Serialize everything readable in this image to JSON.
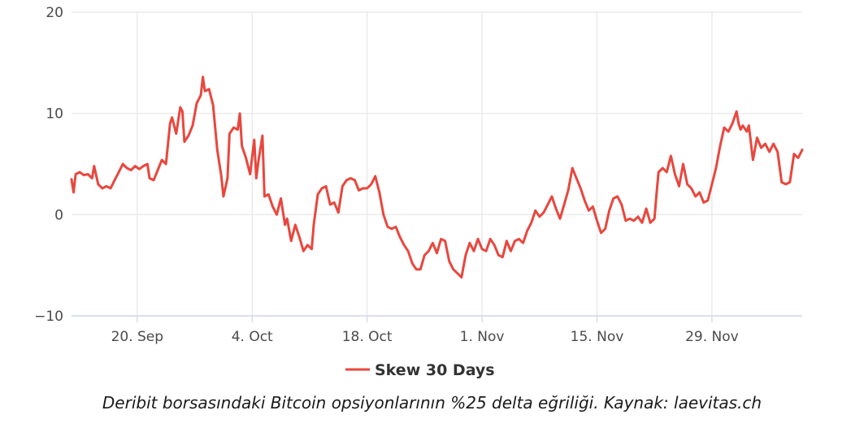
{
  "caption": "Deribit borsasındaki Bitcoin opsiyonlarının %25 delta eğriliği. Kaynak: laevitas.ch",
  "colors": {
    "series": "#e8473e",
    "grid": "#e6e6e6",
    "axis": "#ccd6eb"
  },
  "chart_data": {
    "type": "line",
    "title": "",
    "xlabel": "",
    "ylabel": "",
    "ylim": [
      -10,
      20
    ],
    "xlim": [
      "2021-09-12",
      "2021-12-10"
    ],
    "grid": true,
    "legend_position": "bottom-center",
    "y_ticks": [
      {
        "value": -10,
        "label": "−10"
      },
      {
        "value": 0,
        "label": "0"
      },
      {
        "value": 10,
        "label": "10"
      },
      {
        "value": 20,
        "label": "20"
      }
    ],
    "x_ticks": [
      {
        "value": "2021-09-20",
        "label": "20. Sep"
      },
      {
        "value": "2021-10-04",
        "label": "4. Oct"
      },
      {
        "value": "2021-10-18",
        "label": "18. Oct"
      },
      {
        "value": "2021-11-01",
        "label": "1. Nov"
      },
      {
        "value": "2021-11-15",
        "label": "15. Nov"
      },
      {
        "value": "2021-11-29",
        "label": "29. Nov"
      }
    ],
    "series": [
      {
        "name": "Skew 30 Days",
        "points": [
          [
            "2021-09-12T00:00",
            3.5
          ],
          [
            "2021-09-12T06:00",
            2.2
          ],
          [
            "2021-09-12T12:00",
            4.0
          ],
          [
            "2021-09-13T00:00",
            4.2
          ],
          [
            "2021-09-13T12:00",
            3.9
          ],
          [
            "2021-09-14T00:00",
            4.0
          ],
          [
            "2021-09-14T12:00",
            3.6
          ],
          [
            "2021-09-14T18:00",
            4.8
          ],
          [
            "2021-09-15T06:00",
            3.0
          ],
          [
            "2021-09-15T18:00",
            2.6
          ],
          [
            "2021-09-16T06:00",
            2.8
          ],
          [
            "2021-09-16T18:00",
            2.6
          ],
          [
            "2021-09-17T06:00",
            3.4
          ],
          [
            "2021-09-17T18:00",
            4.2
          ],
          [
            "2021-09-18T06:00",
            5.0
          ],
          [
            "2021-09-18T18:00",
            4.6
          ],
          [
            "2021-09-19T06:00",
            4.4
          ],
          [
            "2021-09-19T18:00",
            4.8
          ],
          [
            "2021-09-20T06:00",
            4.5
          ],
          [
            "2021-09-20T18:00",
            4.8
          ],
          [
            "2021-09-21T06:00",
            5.0
          ],
          [
            "2021-09-21T12:00",
            3.6
          ],
          [
            "2021-09-22T00:00",
            3.4
          ],
          [
            "2021-09-22T12:00",
            4.4
          ],
          [
            "2021-09-23T00:00",
            5.4
          ],
          [
            "2021-09-23T12:00",
            5.0
          ],
          [
            "2021-09-24T00:00",
            9.0
          ],
          [
            "2021-09-24T06:00",
            9.6
          ],
          [
            "2021-09-24T18:00",
            8.0
          ],
          [
            "2021-09-25T06:00",
            10.6
          ],
          [
            "2021-09-25T12:00",
            10.2
          ],
          [
            "2021-09-25T18:00",
            7.2
          ],
          [
            "2021-09-26T06:00",
            7.8
          ],
          [
            "2021-09-26T18:00",
            8.8
          ],
          [
            "2021-09-27T06:00",
            11.0
          ],
          [
            "2021-09-27T18:00",
            11.8
          ],
          [
            "2021-09-28T00:00",
            13.6
          ],
          [
            "2021-09-28T06:00",
            12.2
          ],
          [
            "2021-09-28T18:00",
            12.4
          ],
          [
            "2021-09-29T06:00",
            10.8
          ],
          [
            "2021-09-29T18:00",
            6.4
          ],
          [
            "2021-09-30T06:00",
            3.8
          ],
          [
            "2021-09-30T12:00",
            1.8
          ],
          [
            "2021-10-01T00:00",
            3.6
          ],
          [
            "2021-10-01T06:00",
            8.0
          ],
          [
            "2021-10-01T18:00",
            8.6
          ],
          [
            "2021-10-02T06:00",
            8.4
          ],
          [
            "2021-10-02T12:00",
            10.0
          ],
          [
            "2021-10-02T18:00",
            6.8
          ],
          [
            "2021-10-03T06:00",
            5.6
          ],
          [
            "2021-10-03T18:00",
            4.0
          ],
          [
            "2021-10-04T06:00",
            7.4
          ],
          [
            "2021-10-04T12:00",
            3.6
          ],
          [
            "2021-10-04T18:00",
            5.2
          ],
          [
            "2021-10-05T06:00",
            7.8
          ],
          [
            "2021-10-05T12:00",
            1.8
          ],
          [
            "2021-10-06T00:00",
            2.0
          ],
          [
            "2021-10-06T12:00",
            0.8
          ],
          [
            "2021-10-07T00:00",
            0.0
          ],
          [
            "2021-10-07T12:00",
            1.6
          ],
          [
            "2021-10-08T00:00",
            -1.0
          ],
          [
            "2021-10-08T06:00",
            -0.4
          ],
          [
            "2021-10-08T18:00",
            -2.6
          ],
          [
            "2021-10-09T06:00",
            -1.0
          ],
          [
            "2021-10-09T18:00",
            -2.2
          ],
          [
            "2021-10-10T06:00",
            -3.6
          ],
          [
            "2021-10-10T18:00",
            -3.0
          ],
          [
            "2021-10-11T06:00",
            -3.4
          ],
          [
            "2021-10-11T12:00",
            -1.0
          ],
          [
            "2021-10-12T00:00",
            2.0
          ],
          [
            "2021-10-12T12:00",
            2.6
          ],
          [
            "2021-10-13T00:00",
            2.8
          ],
          [
            "2021-10-13T12:00",
            1.0
          ],
          [
            "2021-10-14T00:00",
            1.2
          ],
          [
            "2021-10-14T12:00",
            0.2
          ],
          [
            "2021-10-15T00:00",
            2.8
          ],
          [
            "2021-10-15T12:00",
            3.4
          ],
          [
            "2021-10-16T00:00",
            3.6
          ],
          [
            "2021-10-16T12:00",
            3.4
          ],
          [
            "2021-10-17T00:00",
            2.4
          ],
          [
            "2021-10-17T12:00",
            2.6
          ],
          [
            "2021-10-18T00:00",
            2.6
          ],
          [
            "2021-10-18T12:00",
            3.0
          ],
          [
            "2021-10-19T00:00",
            3.8
          ],
          [
            "2021-10-19T12:00",
            2.2
          ],
          [
            "2021-10-20T00:00",
            0.0
          ],
          [
            "2021-10-20T12:00",
            -1.2
          ],
          [
            "2021-10-21T00:00",
            -1.4
          ],
          [
            "2021-10-21T12:00",
            -1.2
          ],
          [
            "2021-10-22T00:00",
            -2.2
          ],
          [
            "2021-10-22T12:00",
            -3.0
          ],
          [
            "2021-10-23T00:00",
            -3.6
          ],
          [
            "2021-10-23T12:00",
            -4.8
          ],
          [
            "2021-10-24T00:00",
            -5.4
          ],
          [
            "2021-10-24T12:00",
            -5.4
          ],
          [
            "2021-10-25T00:00",
            -4.0
          ],
          [
            "2021-10-25T12:00",
            -3.6
          ],
          [
            "2021-10-26T00:00",
            -2.8
          ],
          [
            "2021-10-26T12:00",
            -3.8
          ],
          [
            "2021-10-27T00:00",
            -2.4
          ],
          [
            "2021-10-27T12:00",
            -2.6
          ],
          [
            "2021-10-28T00:00",
            -4.6
          ],
          [
            "2021-10-28T12:00",
            -5.4
          ],
          [
            "2021-10-29T00:00",
            -5.8
          ],
          [
            "2021-10-29T12:00",
            -6.2
          ],
          [
            "2021-10-30T00:00",
            -4.0
          ],
          [
            "2021-10-30T06:00",
            -3.4
          ],
          [
            "2021-10-30T12:00",
            -2.8
          ],
          [
            "2021-10-31T00:00",
            -3.6
          ],
          [
            "2021-10-31T12:00",
            -2.4
          ],
          [
            "2021-11-01T00:00",
            -3.4
          ],
          [
            "2021-11-01T12:00",
            -3.6
          ],
          [
            "2021-11-02T00:00",
            -2.4
          ],
          [
            "2021-11-02T12:00",
            -3.0
          ],
          [
            "2021-11-03T00:00",
            -4.0
          ],
          [
            "2021-11-03T12:00",
            -4.2
          ],
          [
            "2021-11-04T00:00",
            -2.6
          ],
          [
            "2021-11-04T12:00",
            -3.6
          ],
          [
            "2021-11-05T00:00",
            -2.6
          ],
          [
            "2021-11-05T12:00",
            -2.4
          ],
          [
            "2021-11-06T00:00",
            -2.8
          ],
          [
            "2021-11-06T12:00",
            -1.6
          ],
          [
            "2021-11-07T00:00",
            -0.8
          ],
          [
            "2021-11-07T12:00",
            0.4
          ],
          [
            "2021-11-08T00:00",
            -0.2
          ],
          [
            "2021-11-08T12:00",
            0.2
          ],
          [
            "2021-11-09T00:00",
            1.0
          ],
          [
            "2021-11-09T12:00",
            1.8
          ],
          [
            "2021-11-10T00:00",
            0.6
          ],
          [
            "2021-11-10T12:00",
            -0.4
          ],
          [
            "2021-11-11T00:00",
            1.0
          ],
          [
            "2021-11-11T12:00",
            2.4
          ],
          [
            "2021-11-12T00:00",
            4.6
          ],
          [
            "2021-11-12T12:00",
            3.6
          ],
          [
            "2021-11-13T00:00",
            2.6
          ],
          [
            "2021-11-13T12:00",
            1.4
          ],
          [
            "2021-11-14T00:00",
            0.4
          ],
          [
            "2021-11-14T12:00",
            0.8
          ],
          [
            "2021-11-15T00:00",
            -0.6
          ],
          [
            "2021-11-15T12:00",
            -1.8
          ],
          [
            "2021-11-16T00:00",
            -1.4
          ],
          [
            "2021-11-16T12:00",
            0.4
          ],
          [
            "2021-11-17T00:00",
            1.6
          ],
          [
            "2021-11-17T12:00",
            1.8
          ],
          [
            "2021-11-18T00:00",
            1.0
          ],
          [
            "2021-11-18T12:00",
            -0.6
          ],
          [
            "2021-11-19T00:00",
            -0.4
          ],
          [
            "2021-11-19T12:00",
            -0.6
          ],
          [
            "2021-11-20T00:00",
            -0.2
          ],
          [
            "2021-11-20T12:00",
            -0.8
          ],
          [
            "2021-11-21T00:00",
            0.6
          ],
          [
            "2021-11-21T12:00",
            -0.8
          ],
          [
            "2021-11-22T00:00",
            -0.4
          ],
          [
            "2021-11-22T06:00",
            2.0
          ],
          [
            "2021-11-22T12:00",
            4.2
          ],
          [
            "2021-11-23T00:00",
            4.6
          ],
          [
            "2021-11-23T12:00",
            4.2
          ],
          [
            "2021-11-24T00:00",
            5.8
          ],
          [
            "2021-11-24T12:00",
            4.0
          ],
          [
            "2021-11-25T00:00",
            2.8
          ],
          [
            "2021-11-25T12:00",
            5.0
          ],
          [
            "2021-11-26T00:00",
            3.0
          ],
          [
            "2021-11-26T12:00",
            2.6
          ],
          [
            "2021-11-27T00:00",
            1.8
          ],
          [
            "2021-11-27T12:00",
            2.2
          ],
          [
            "2021-11-28T00:00",
            1.2
          ],
          [
            "2021-11-28T12:00",
            1.4
          ],
          [
            "2021-11-29T00:00",
            3.0
          ],
          [
            "2021-11-29T12:00",
            4.6
          ],
          [
            "2021-11-30T00:00",
            6.8
          ],
          [
            "2021-11-30T12:00",
            8.6
          ],
          [
            "2021-12-01T00:00",
            8.2
          ],
          [
            "2021-12-01T12:00",
            9.0
          ],
          [
            "2021-12-02T00:00",
            10.2
          ],
          [
            "2021-12-02T06:00",
            9.0
          ],
          [
            "2021-12-02T12:00",
            8.4
          ],
          [
            "2021-12-02T18:00",
            8.8
          ],
          [
            "2021-12-03T06:00",
            8.2
          ],
          [
            "2021-12-03T12:00",
            8.8
          ],
          [
            "2021-12-04T00:00",
            5.4
          ],
          [
            "2021-12-04T12:00",
            7.6
          ],
          [
            "2021-12-05T00:00",
            6.6
          ],
          [
            "2021-12-05T12:00",
            7.0
          ],
          [
            "2021-12-06T00:00",
            6.2
          ],
          [
            "2021-12-06T12:00",
            7.0
          ],
          [
            "2021-12-07T00:00",
            6.2
          ],
          [
            "2021-12-07T12:00",
            3.2
          ],
          [
            "2021-12-08T00:00",
            3.0
          ],
          [
            "2021-12-08T12:00",
            3.2
          ],
          [
            "2021-12-09T00:00",
            6.0
          ],
          [
            "2021-12-09T12:00",
            5.6
          ],
          [
            "2021-12-10T00:00",
            6.4
          ]
        ]
      }
    ]
  }
}
